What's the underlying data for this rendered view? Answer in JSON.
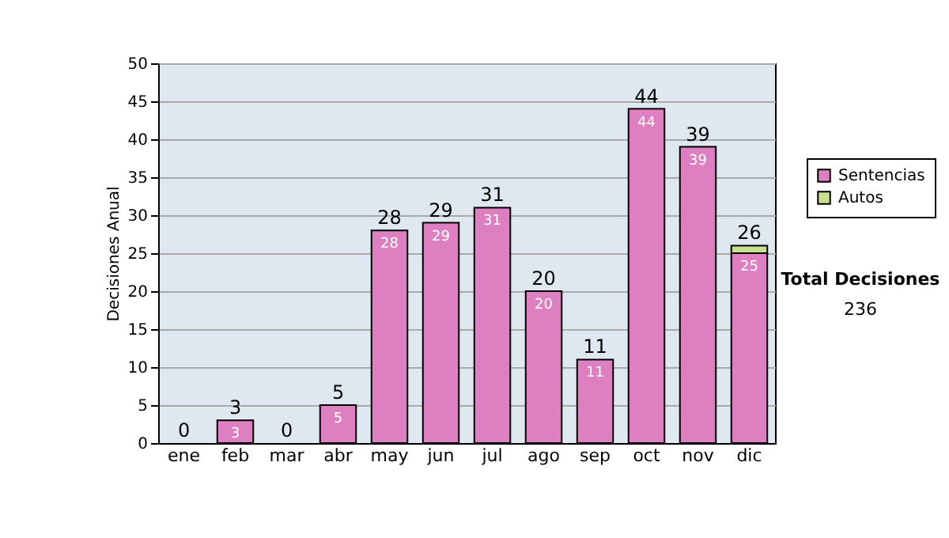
{
  "chart_data": {
    "type": "bar",
    "stacked": true,
    "ylabel": "Decisiones Anual",
    "categories": [
      "ene",
      "feb",
      "mar",
      "abr",
      "may",
      "jun",
      "jul",
      "ago",
      "sep",
      "oct",
      "nov",
      "dic"
    ],
    "series": [
      {
        "name": "Sentencias",
        "color": "#dd7fc0",
        "values": [
          0,
          3,
          0,
          5,
          28,
          29,
          31,
          20,
          11,
          44,
          39,
          25
        ],
        "value_labels": [
          null,
          "3",
          null,
          "5",
          "28",
          "29",
          "31",
          "20",
          "11",
          "44",
          "39",
          "25"
        ]
      },
      {
        "name": "Autos",
        "color": "#c8e08c",
        "values": [
          0,
          0,
          0,
          0,
          0,
          0,
          0,
          0,
          0,
          0,
          0,
          1
        ]
      }
    ],
    "totals": [
      "0",
      "3",
      "0",
      "5",
      "28",
      "29",
      "31",
      "20",
      "11",
      "44",
      "39",
      "26"
    ],
    "ylim": [
      0,
      50
    ],
    "yticks": [
      0,
      5,
      10,
      15,
      20,
      25,
      30,
      35,
      40,
      45,
      50
    ],
    "grid": true,
    "legend": "right",
    "annotations": [
      "Total Decisiones",
      "236"
    ]
  }
}
